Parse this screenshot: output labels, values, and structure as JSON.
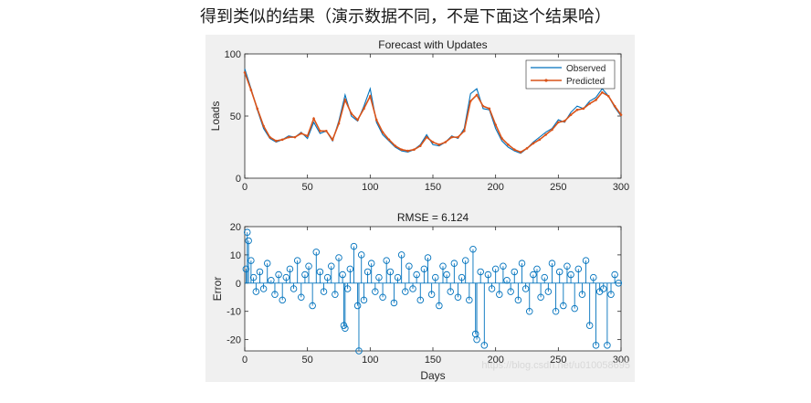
{
  "caption": "得到类似的结果（演示数据不同，不是下面这个结果哈）",
  "watermark": "https://blog.csdn.net/u010058695",
  "colors": {
    "observed": "#0072bd",
    "predicted": "#d95319",
    "error": "#0072bd",
    "figure_bg": "#f0f0f0",
    "axes_bg": "#ffffff"
  },
  "chart_data": [
    {
      "type": "line",
      "title": "Forecast with Updates",
      "xlabel": "",
      "ylabel": "Loads",
      "xlim": [
        0,
        300
      ],
      "ylim": [
        0,
        100
      ],
      "xticks": [
        0,
        50,
        100,
        150,
        200,
        250,
        300
      ],
      "yticks": [
        0,
        50,
        100
      ],
      "legend_position": "top-right",
      "series": [
        {
          "name": "Observed",
          "x": [
            0,
            5,
            10,
            15,
            20,
            25,
            30,
            35,
            40,
            45,
            50,
            55,
            60,
            65,
            70,
            75,
            80,
            85,
            90,
            95,
            100,
            105,
            110,
            115,
            120,
            125,
            130,
            135,
            140,
            145,
            150,
            155,
            160,
            165,
            170,
            175,
            180,
            185,
            190,
            195,
            200,
            205,
            210,
            215,
            220,
            225,
            230,
            235,
            240,
            245,
            250,
            255,
            260,
            265,
            270,
            275,
            280,
            285,
            290,
            295,
            300
          ],
          "y": [
            88,
            72,
            55,
            40,
            32,
            29,
            31,
            34,
            33,
            37,
            32,
            45,
            36,
            38,
            30,
            46,
            67,
            50,
            46,
            58,
            72,
            45,
            35,
            30,
            25,
            22,
            21,
            23,
            27,
            35,
            27,
            26,
            29,
            34,
            32,
            40,
            68,
            72,
            56,
            55,
            40,
            30,
            25,
            22,
            20,
            24,
            29,
            33,
            37,
            40,
            47,
            45,
            53,
            58,
            56,
            62,
            65,
            72,
            66,
            57,
            50
          ]
        },
        {
          "name": "Predicted",
          "x": [
            0,
            5,
            10,
            15,
            20,
            25,
            30,
            35,
            40,
            45,
            50,
            55,
            60,
            65,
            70,
            75,
            80,
            85,
            90,
            95,
            100,
            105,
            110,
            115,
            120,
            125,
            130,
            135,
            140,
            145,
            150,
            155,
            160,
            165,
            170,
            175,
            180,
            185,
            190,
            195,
            200,
            205,
            210,
            215,
            220,
            225,
            230,
            235,
            240,
            245,
            250,
            255,
            260,
            265,
            270,
            275,
            280,
            285,
            290,
            295,
            300
          ],
          "y": [
            85,
            71,
            56,
            42,
            33,
            30,
            31,
            33,
            33,
            36,
            34,
            48,
            38,
            38,
            31,
            44,
            63,
            52,
            47,
            56,
            66,
            47,
            37,
            31,
            26,
            23,
            22,
            23,
            26,
            33,
            29,
            27,
            29,
            33,
            33,
            38,
            62,
            67,
            58,
            56,
            43,
            32,
            27,
            23,
            21,
            24,
            28,
            31,
            35,
            39,
            45,
            46,
            51,
            55,
            56,
            60,
            63,
            69,
            66,
            58,
            51
          ]
        }
      ]
    },
    {
      "type": "scatter",
      "subtype": "stem",
      "title": "RMSE = 6.124",
      "xlabel": "Days",
      "ylabel": "Error",
      "xlim": [
        0,
        300
      ],
      "ylim": [
        -24,
        20
      ],
      "xticks": [
        0,
        50,
        100,
        150,
        200,
        250,
        300
      ],
      "yticks": [
        -20,
        -10,
        0,
        10,
        20
      ],
      "series": [
        {
          "x": [
            1,
            2,
            3,
            5,
            7,
            9,
            12,
            15,
            18,
            21,
            24,
            27,
            30,
            33,
            36,
            39,
            42,
            45,
            48,
            51,
            54,
            57,
            60,
            63,
            66,
            69,
            72,
            75,
            78,
            79,
            80,
            82,
            84,
            87,
            90,
            91,
            93,
            95,
            98,
            101,
            104,
            107,
            110,
            113,
            116,
            119,
            122,
            125,
            128,
            131,
            134,
            137,
            140,
            143,
            146,
            149,
            152,
            155,
            158,
            161,
            164,
            167,
            170,
            173,
            176,
            179,
            182,
            184,
            185,
            188,
            191,
            194,
            197,
            200,
            203,
            206,
            209,
            212,
            215,
            218,
            221,
            224,
            227,
            230,
            233,
            236,
            239,
            242,
            245,
            248,
            251,
            254,
            257,
            260,
            263,
            266,
            269,
            272,
            275,
            278,
            280,
            283,
            286,
            289,
            292,
            295,
            298
          ],
          "y": [
            5,
            18,
            15,
            8,
            2,
            -3,
            4,
            -2,
            7,
            1,
            -4,
            3,
            -6,
            2,
            5,
            -2,
            8,
            -5,
            3,
            6,
            -8,
            11,
            4,
            -3,
            2,
            6,
            -4,
            9,
            3,
            -15,
            -16,
            -2,
            5,
            13,
            -8,
            -24,
            10,
            -6,
            4,
            7,
            -3,
            2,
            -5,
            8,
            4,
            -7,
            2,
            10,
            -3,
            6,
            -2,
            3,
            -6,
            5,
            9,
            -4,
            2,
            -8,
            6,
            3,
            -3,
            7,
            -5,
            2,
            8,
            -6,
            12,
            -18,
            -20,
            4,
            -22,
            3,
            -2,
            5,
            -4,
            6,
            1,
            -3,
            4,
            -6,
            7,
            -2,
            -10,
            3,
            5,
            -5,
            2,
            -3,
            7,
            -10,
            4,
            -8,
            6,
            3,
            -9,
            5,
            -4,
            8,
            -15,
            2,
            -22,
            -3,
            -2,
            -22,
            -4,
            3,
            0
          ]
        }
      ]
    }
  ]
}
